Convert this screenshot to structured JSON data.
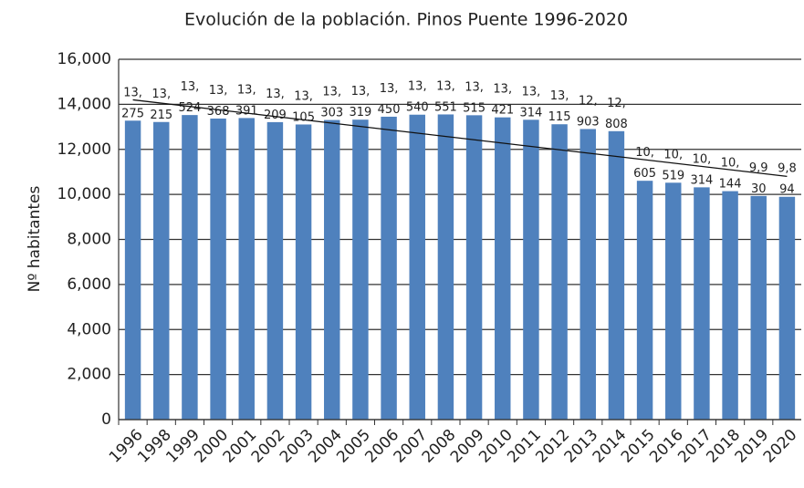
{
  "chart_data": {
    "type": "bar",
    "title": "Evolución de la población. Pinos Puente 1996-2020",
    "y_label": "Nº habitantes",
    "categories": [
      "1996",
      "1998",
      "1999",
      "2000",
      "2001",
      "2002",
      "2003",
      "2004",
      "2005",
      "2006",
      "2007",
      "2008",
      "2009",
      "2010",
      "2011",
      "2012",
      "2013",
      "2014",
      "2015",
      "2016",
      "2017",
      "2018",
      "2019",
      "2020"
    ],
    "values": [
      13275,
      13215,
      13524,
      13368,
      13391,
      13209,
      13105,
      13303,
      13319,
      13450,
      13540,
      13551,
      13515,
      13421,
      13314,
      13115,
      12903,
      12808,
      10605,
      10519,
      10314,
      10144,
      9930,
      9894
    ],
    "value_labels": [
      "13,275",
      "13,215",
      "13,524",
      "13,368",
      "13,391",
      "13,209",
      "13,105",
      "13,303",
      "13,319",
      "13,450",
      "13,540",
      "13,551",
      "13,515",
      "13,421",
      "13,314",
      "13,115",
      "12,903",
      "12,808",
      "10,605",
      "10,519",
      "10,314",
      "10,144",
      "9,930",
      "9,894"
    ],
    "color": "#4f81bd",
    "trendline": [
      14200,
      10800
    ],
    "ylim": [
      0,
      16000
    ],
    "yticks": [
      0,
      {
        "value": 2000,
        "label": "2,000"
      },
      {
        "value": 4000,
        "label": "4,000"
      },
      {
        "value": 6000,
        "label": "6,000"
      },
      {
        "value": 8000,
        "label": "8,000"
      },
      {
        "value": 10000,
        "label": "10,000"
      },
      {
        "value": 12000,
        "label": "12,000"
      },
      {
        "value": 14000,
        "label": "14,000"
      },
      {
        "value": 16000,
        "label": "16,000"
      }
    ],
    "grid": true
  }
}
